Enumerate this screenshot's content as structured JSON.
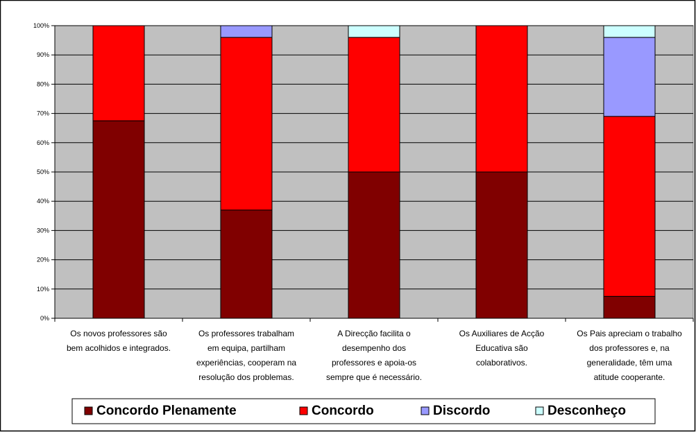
{
  "chart_data": {
    "type": "bar",
    "stacked": true,
    "percent": true,
    "categories": [
      [
        "Os novos professores são",
        "bem acolhidos e integrados."
      ],
      [
        "Os professores trabalham",
        "em equipa, partilham",
        "experiências, cooperam na",
        "resolução dos problemas."
      ],
      [
        "A Direcção facilita o",
        "desempenho dos",
        "professores e apoia-os",
        "sempre que é necessário."
      ],
      [
        "Os Auxiliares de Acção",
        "Educativa são",
        "colaborativos."
      ],
      [
        "Os Pais apreciam o trabalho",
        "dos professores e, na",
        "generalidade, têm uma",
        "atitude cooperante."
      ]
    ],
    "series": [
      {
        "name": "Concordo Plenamente",
        "color": "#800000",
        "values": [
          67.5,
          37,
          50,
          50,
          7.5
        ]
      },
      {
        "name": "Concordo",
        "color": "#ff0000",
        "values": [
          32.5,
          59,
          46,
          50,
          61.5
        ]
      },
      {
        "name": "Discordo",
        "color": "#9999ff",
        "values": [
          0,
          4,
          0,
          0,
          27
        ]
      },
      {
        "name": "Desconheço",
        "color": "#ccffff",
        "values": [
          0,
          0,
          4,
          0,
          4
        ]
      }
    ],
    "y_ticks": [
      "0%",
      "10%",
      "20%",
      "30%",
      "40%",
      "50%",
      "60%",
      "70%",
      "80%",
      "90%",
      "100%"
    ],
    "ylim": [
      0,
      100
    ],
    "grid": true,
    "plot_background": "#c0c0c0",
    "legend_position": "bottom"
  }
}
